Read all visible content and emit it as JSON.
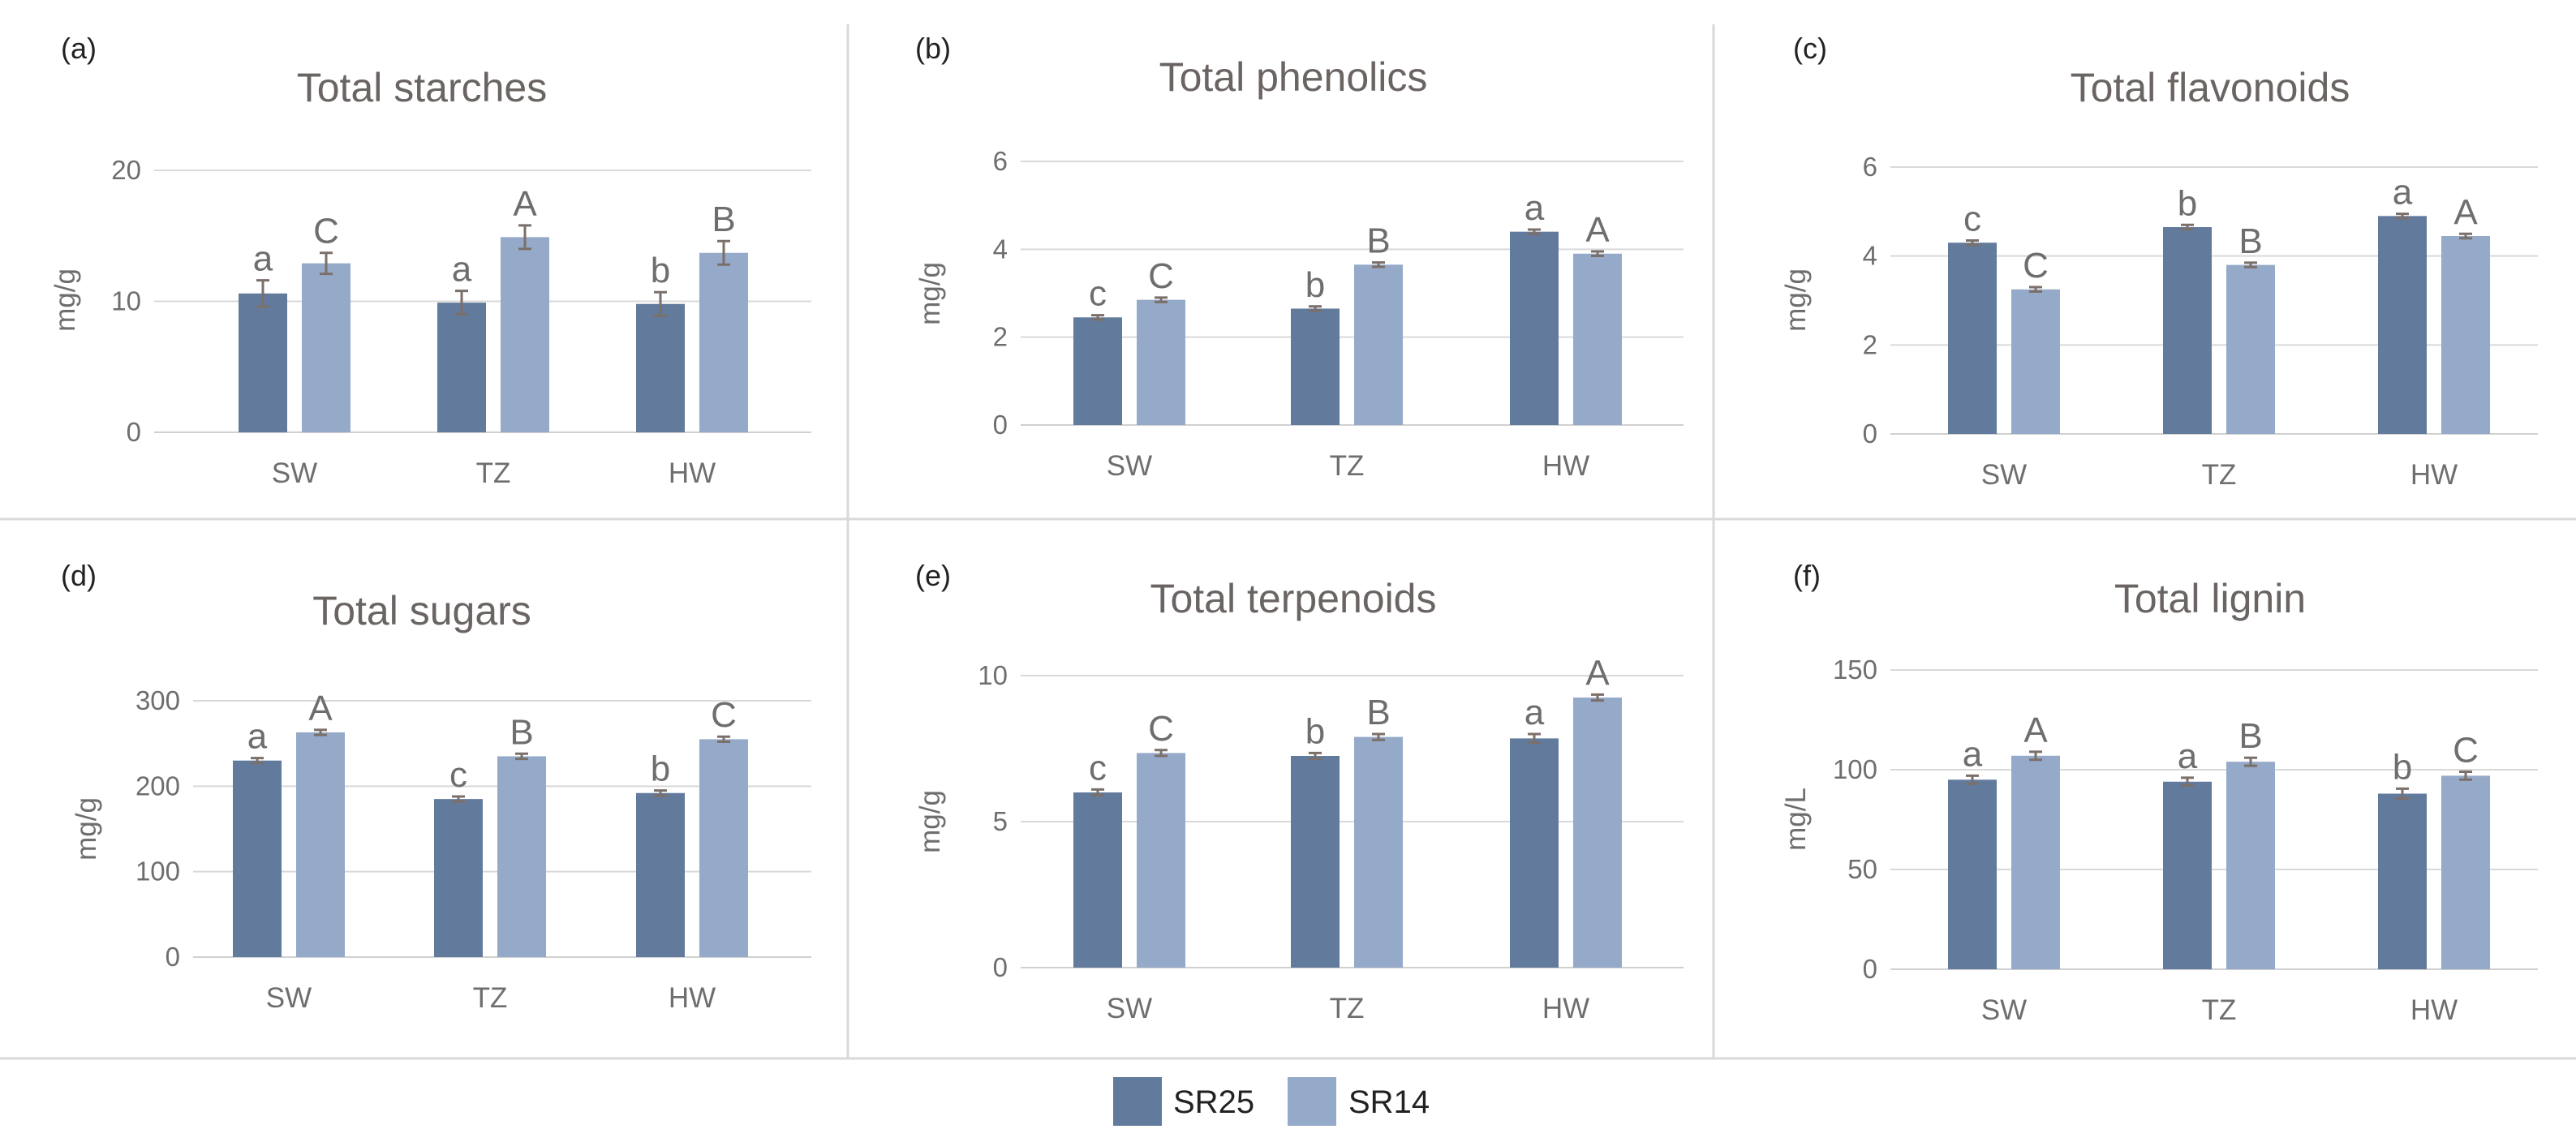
{
  "chart_data": [
    {
      "type": "bar",
      "panel_label": "(a)",
      "title": "Total starches",
      "ylabel": "mg/g",
      "ylim": [
        0,
        20
      ],
      "yticks": [
        "0",
        "10",
        "20"
      ],
      "categories": [
        "SW",
        "TZ",
        "HW"
      ],
      "series": [
        {
          "name": "SR25",
          "values": [
            10.6,
            9.9,
            9.8
          ],
          "errors": [
            1.0,
            0.9,
            0.9
          ],
          "letters": [
            "a",
            "a",
            "b"
          ]
        },
        {
          "name": "SR14",
          "values": [
            12.9,
            14.9,
            13.7
          ],
          "errors": [
            0.8,
            0.9,
            0.9
          ],
          "letters": [
            "C",
            "A",
            "B"
          ]
        }
      ]
    },
    {
      "type": "bar",
      "panel_label": "(b)",
      "title": "Total phenolics",
      "ylabel": "mg/g",
      "ylim": [
        0,
        6
      ],
      "yticks": [
        "0",
        "2",
        "4",
        "6"
      ],
      "categories": [
        "SW",
        "TZ",
        "HW"
      ],
      "series": [
        {
          "name": "SR25",
          "values": [
            2.45,
            2.65,
            4.4
          ],
          "errors": [
            0.05,
            0.05,
            0.05
          ],
          "letters": [
            "c",
            "b",
            "a"
          ]
        },
        {
          "name": "SR14",
          "values": [
            2.85,
            3.65,
            3.9
          ],
          "errors": [
            0.05,
            0.05,
            0.05
          ],
          "letters": [
            "C",
            "B",
            "A"
          ]
        }
      ]
    },
    {
      "type": "bar",
      "panel_label": "(c)",
      "title": "Total flavonoids",
      "ylabel": "mg/g",
      "ylim": [
        0,
        6
      ],
      "yticks": [
        "0",
        "2",
        "4",
        "6"
      ],
      "categories": [
        "SW",
        "TZ",
        "HW"
      ],
      "series": [
        {
          "name": "SR25",
          "values": [
            4.3,
            4.65,
            4.9
          ],
          "errors": [
            0.05,
            0.05,
            0.05
          ],
          "letters": [
            "c",
            "b",
            "a"
          ]
        },
        {
          "name": "SR14",
          "values": [
            3.25,
            3.8,
            4.45
          ],
          "errors": [
            0.05,
            0.05,
            0.05
          ],
          "letters": [
            "C",
            "B",
            "A"
          ]
        }
      ]
    },
    {
      "type": "bar",
      "panel_label": "(d)",
      "title": "Total sugars",
      "ylabel": "mg/g",
      "ylim": [
        0,
        300
      ],
      "yticks": [
        "0",
        "100",
        "200",
        "300"
      ],
      "categories": [
        "SW",
        "TZ",
        "HW"
      ],
      "series": [
        {
          "name": "SR25",
          "values": [
            230,
            185,
            192
          ],
          "errors": [
            3,
            3,
            3
          ],
          "letters": [
            "a",
            "c",
            "b"
          ]
        },
        {
          "name": "SR14",
          "values": [
            263,
            235,
            255
          ],
          "errors": [
            3,
            3,
            3
          ],
          "letters": [
            "A",
            "B",
            "C"
          ]
        }
      ]
    },
    {
      "type": "bar",
      "panel_label": "(e)",
      "title": "Total terpenoids",
      "ylabel": "mg/g",
      "ylim": [
        0,
        10
      ],
      "yticks": [
        "0",
        "5",
        "10"
      ],
      "categories": [
        "SW",
        "TZ",
        "HW"
      ],
      "series": [
        {
          "name": "SR25",
          "values": [
            6.0,
            7.25,
            7.85
          ],
          "errors": [
            0.1,
            0.1,
            0.15
          ],
          "letters": [
            "c",
            "b",
            "a"
          ]
        },
        {
          "name": "SR14",
          "values": [
            7.35,
            7.9,
            9.25
          ],
          "errors": [
            0.1,
            0.1,
            0.1
          ],
          "letters": [
            "C",
            "B",
            "A"
          ]
        }
      ]
    },
    {
      "type": "bar",
      "panel_label": "(f)",
      "title": "Total lignin",
      "ylabel": "mg/L",
      "ylim": [
        0,
        150
      ],
      "yticks": [
        "0",
        "50",
        "100",
        "150"
      ],
      "categories": [
        "SW",
        "TZ",
        "HW"
      ],
      "series": [
        {
          "name": "SR25",
          "values": [
            95,
            94,
            88
          ],
          "errors": [
            2,
            2,
            2.5
          ],
          "letters": [
            "a",
            "a",
            "b"
          ]
        },
        {
          "name": "SR14",
          "values": [
            107,
            104,
            97
          ],
          "errors": [
            2,
            2,
            2
          ],
          "letters": [
            "A",
            "B",
            "C"
          ]
        }
      ]
    }
  ],
  "legend": [
    {
      "name": "SR25",
      "color": "#627b9c"
    },
    {
      "name": "SR14",
      "color": "#95a9c8"
    }
  ],
  "colors": {
    "SR25": "#627b9c",
    "SR14": "#95a9c8",
    "error_bar": "#7b6f6a",
    "text": "#6e6e6e",
    "title": "#6a6462"
  }
}
